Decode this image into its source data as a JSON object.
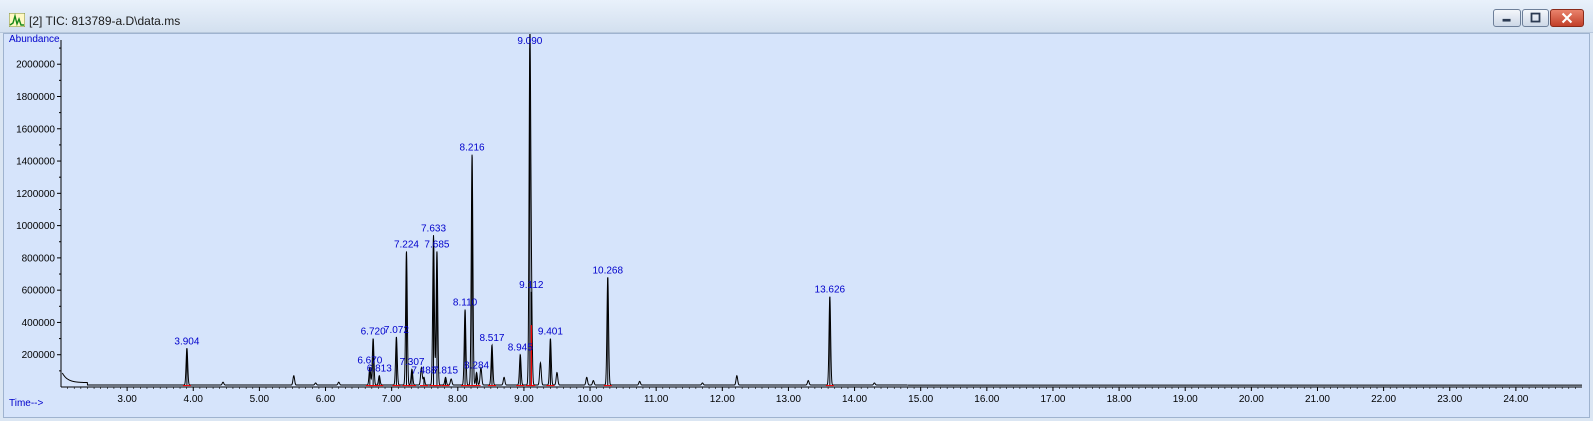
{
  "window": {
    "title": "[2] TIC: 813789-a.D\\data.ms",
    "icons": [
      "chromatogram-app-icon",
      "minimize-icon",
      "maximize-icon",
      "close-icon"
    ]
  },
  "chart_data": {
    "type": "line",
    "ylabel": "Abundance",
    "xlabel": "Time-->",
    "xlim": [
      2.0,
      25.0
    ],
    "ylim": [
      0,
      2150000
    ],
    "x_ticks": [
      "3.00",
      "4.00",
      "5.00",
      "6.00",
      "7.00",
      "8.00",
      "9.00",
      "10.00",
      "11.00",
      "12.00",
      "13.00",
      "14.00",
      "15.00",
      "16.00",
      "17.00",
      "18.00",
      "19.00",
      "20.00",
      "21.00",
      "22.00",
      "23.00",
      "24.00"
    ],
    "x_tick_values": [
      3,
      4,
      5,
      6,
      7,
      8,
      9,
      10,
      11,
      12,
      13,
      14,
      15,
      16,
      17,
      18,
      19,
      20,
      21,
      22,
      23,
      24
    ],
    "y_ticks": [
      "200000",
      "400000",
      "600000",
      "800000",
      "1000000",
      "1200000",
      "1400000",
      "1600000",
      "1800000",
      "2000000"
    ],
    "y_tick_values": [
      200000,
      400000,
      600000,
      800000,
      1000000,
      1200000,
      1400000,
      1600000,
      1800000,
      2000000
    ],
    "grid": false,
    "colors": {
      "trace": "#000000",
      "integration": "#ff0000",
      "label": "#0000cc",
      "background": "#d6e4fb"
    },
    "baseline": 12000,
    "peaks": [
      {
        "label": "3.904",
        "x": 3.904,
        "y": 240000
      },
      {
        "label": "6.670",
        "x": 6.67,
        "y": 120000
      },
      {
        "label": "6.720",
        "x": 6.72,
        "y": 300000
      },
      {
        "label": "6.813",
        "x": 6.813,
        "y": 70000
      },
      {
        "label": "7.072",
        "x": 7.072,
        "y": 310000
      },
      {
        "label": "7.224",
        "x": 7.224,
        "y": 840000
      },
      {
        "label": "7.307",
        "x": 7.307,
        "y": 110000
      },
      {
        "label": "7.488",
        "x": 7.488,
        "y": 60000
      },
      {
        "label": "7.633",
        "x": 7.633,
        "y": 940000
      },
      {
        "label": "7.685",
        "x": 7.685,
        "y": 840000
      },
      {
        "label": "7.815",
        "x": 7.815,
        "y": 60000
      },
      {
        "label": "8.110",
        "x": 8.11,
        "y": 480000
      },
      {
        "label": "8.216",
        "x": 8.216,
        "y": 1440000
      },
      {
        "label": "8.284",
        "x": 8.284,
        "y": 90000
      },
      {
        "label": "8.517",
        "x": 8.517,
        "y": 260000
      },
      {
        "label": "8.945",
        "x": 8.945,
        "y": 200000
      },
      {
        "label": "9.090",
        "x": 9.09,
        "y": 2100000
      },
      {
        "label": "9.112",
        "x": 9.112,
        "y": 590000
      },
      {
        "label": "9.401",
        "x": 9.401,
        "y": 300000
      },
      {
        "label": "10.268",
        "x": 10.268,
        "y": 680000
      },
      {
        "label": "13.626",
        "x": 13.626,
        "y": 560000
      }
    ],
    "minor_peaks": [
      {
        "x": 4.45,
        "y": 30000
      },
      {
        "x": 5.52,
        "y": 70000
      },
      {
        "x": 5.85,
        "y": 25000
      },
      {
        "x": 6.2,
        "y": 30000
      },
      {
        "x": 7.45,
        "y": 120000
      },
      {
        "x": 7.9,
        "y": 50000
      },
      {
        "x": 8.35,
        "y": 120000
      },
      {
        "x": 8.7,
        "y": 60000
      },
      {
        "x": 9.25,
        "y": 150000
      },
      {
        "x": 9.5,
        "y": 90000
      },
      {
        "x": 9.95,
        "y": 60000
      },
      {
        "x": 10.05,
        "y": 40000
      },
      {
        "x": 10.75,
        "y": 35000
      },
      {
        "x": 11.7,
        "y": 25000
      },
      {
        "x": 12.22,
        "y": 70000
      },
      {
        "x": 13.3,
        "y": 40000
      },
      {
        "x": 14.3,
        "y": 25000
      }
    ]
  }
}
